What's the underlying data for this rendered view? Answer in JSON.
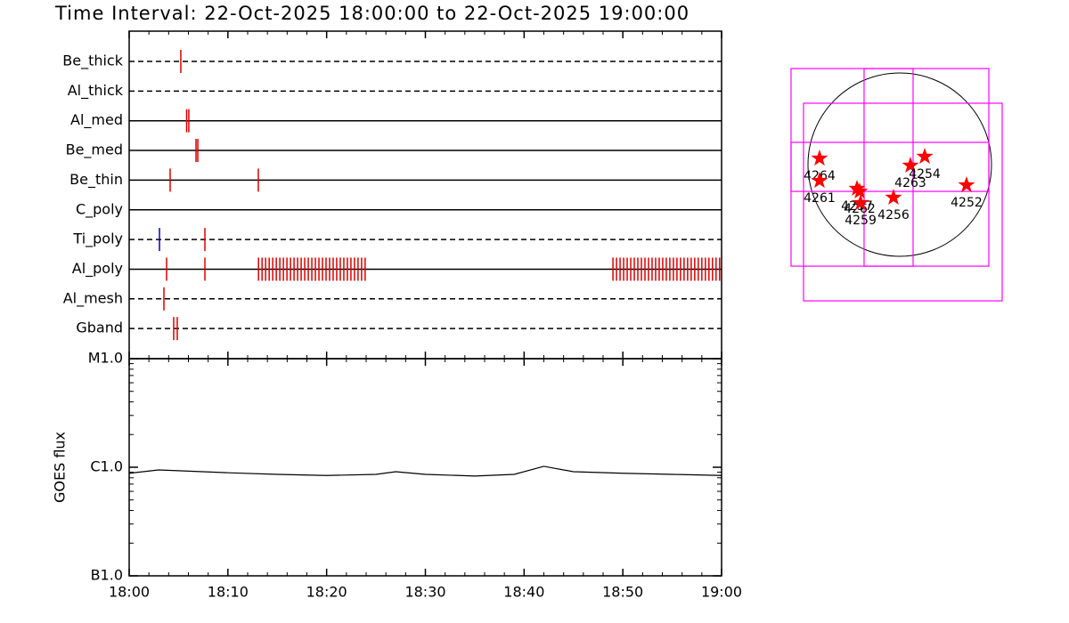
{
  "chart_data": [
    {
      "type": "timeline",
      "title": "Time Interval: 22-Oct-2025 18:00:00 to 22-Oct-2025 19:00:00",
      "rows": [
        {
          "name": "Be_thick",
          "line": "dashed",
          "marks": [
            {
              "color": "#dd0000",
              "x": [
                5.23
              ]
            }
          ]
        },
        {
          "name": "Al_thick",
          "line": "dashed",
          "marks": []
        },
        {
          "name": "Al_med",
          "line": "solid",
          "marks": [
            {
              "color": "#dd0000",
              "x": [
                5.82,
                6.04
              ]
            }
          ]
        },
        {
          "name": "Be_med",
          "line": "solid",
          "marks": [
            {
              "color": "#dd0000",
              "x": [
                6.77,
                6.95
              ]
            }
          ]
        },
        {
          "name": "Be_thin",
          "line": "solid",
          "marks": [
            {
              "color": "#dd0000",
              "x": [
                4.15,
                13.08
              ]
            }
          ]
        },
        {
          "name": "C_poly",
          "line": "solid",
          "marks": []
        },
        {
          "name": "Ti_poly",
          "line": "dashed",
          "marks": [
            {
              "color": "#0000cc",
              "x": [
                3.07
              ]
            },
            {
              "color": "#dd0000",
              "x": [
                7.67
              ]
            }
          ]
        },
        {
          "name": "Al_poly",
          "line": "solid",
          "marks": [
            {
              "color": "#dd0000",
              "x": [
                3.79,
                7.67,
                13.1,
                13.46,
                13.82,
                14.18,
                14.54,
                14.9,
                15.26,
                15.62,
                15.98,
                16.34,
                16.7,
                17.06,
                17.42,
                17.78,
                18.14,
                18.5,
                18.86,
                19.22,
                19.58,
                19.94,
                20.3,
                20.66,
                21.02,
                21.38,
                21.74,
                22.1,
                22.46,
                22.82,
                23.18,
                23.54,
                23.9,
                49,
                49.36,
                49.72,
                50.08,
                50.44,
                50.8,
                51.16,
                51.52,
                51.88,
                52.24,
                52.6,
                52.96,
                53.32,
                53.68,
                54.04,
                54.4,
                54.76,
                55.12,
                55.48,
                55.84,
                56.2,
                56.56,
                56.92,
                57.28,
                57.64,
                58,
                58.36,
                58.72,
                59.08,
                59.44,
                59.8
              ]
            }
          ]
        },
        {
          "name": "Al_mesh",
          "line": "dashed",
          "marks": [
            {
              "color": "#dd0000",
              "x": [
                3.52
              ]
            }
          ]
        },
        {
          "name": "Gband",
          "line": "dashed",
          "marks": [
            {
              "color": "#dd0000",
              "x": [
                4.51,
                4.87
              ]
            }
          ]
        }
      ],
      "xlim": [
        0,
        60
      ],
      "xticks": [
        0,
        10,
        20,
        30,
        40,
        50,
        60
      ],
      "xminorticks": [
        2,
        4,
        6,
        8,
        12,
        14,
        16,
        18,
        22,
        24,
        26,
        28,
        32,
        34,
        36,
        38,
        42,
        44,
        46,
        48,
        52,
        54,
        56,
        58
      ]
    },
    {
      "type": "line",
      "ylabel": "GOES flux",
      "color": "#000000",
      "x": [
        0,
        3,
        10,
        15,
        20,
        25,
        27,
        30,
        35,
        39,
        42,
        45,
        50,
        55,
        60
      ],
      "values": [
        8.8e-07,
        9.45e-07,
        8.9e-07,
        8.6e-07,
        8.4e-07,
        8.6e-07,
        9.1e-07,
        8.6e-07,
        8.3e-07,
        8.6e-07,
        1.02e-06,
        9.1e-07,
        8.8e-07,
        8.6e-07,
        8.4e-07
      ],
      "log": true,
      "ylim": [
        1e-07,
        1e-05
      ],
      "yticks": [
        {
          "value": 1e-07,
          "label": "B1.0"
        },
        {
          "value": 1e-06,
          "label": "C1.0"
        },
        {
          "value": 1e-05,
          "label": "M1.0"
        }
      ],
      "yminorticks": [
        2e-07,
        3e-07,
        4e-07,
        5e-07,
        6e-07,
        7e-07,
        8e-07,
        9e-07,
        2e-06,
        3e-06,
        4e-06,
        5e-06,
        6e-06,
        7e-06,
        8e-06,
        9e-06
      ],
      "xlim": [
        0,
        60
      ],
      "xticks": [
        {
          "value": 0,
          "label": "18:00"
        },
        {
          "value": 10,
          "label": "18:10"
        },
        {
          "value": 20,
          "label": "18:20"
        },
        {
          "value": 30,
          "label": "18:30"
        },
        {
          "value": 40,
          "label": "18:40"
        },
        {
          "value": 50,
          "label": "18:50"
        },
        {
          "value": 60,
          "label": "19:00"
        }
      ],
      "xminorticks": [
        2,
        4,
        6,
        8,
        12,
        14,
        16,
        18,
        22,
        24,
        26,
        28,
        32,
        34,
        36,
        38,
        42,
        44,
        46,
        48,
        52,
        54,
        56,
        58
      ]
    },
    {
      "type": "map",
      "rsun": 970,
      "limb_color": "#000000",
      "box_color": "#ff00ff",
      "boxes": [
        [
          -1149,
          1017,
          942,
          -1074
        ],
        [
          -377,
          1017,
          141,
          -1074
        ],
        [
          -1149,
          236,
          942,
          -283
        ],
        [
          -1017,
          650,
          1083,
          -1441
        ]
      ],
      "points": {
        "color": "#ff0000",
        "labels": [
          "4264",
          "4261",
          "4257",
          "4262",
          "4259",
          "4256",
          "4263",
          "4254",
          "4252"
        ],
        "x": [
          -848,
          -848,
          -452,
          -424,
          -414,
          -66,
          113,
          264,
          706
        ],
        "y": [
          66,
          -170,
          -254,
          -283,
          -405,
          -348,
          -9,
          85,
          -217
        ]
      }
    }
  ]
}
